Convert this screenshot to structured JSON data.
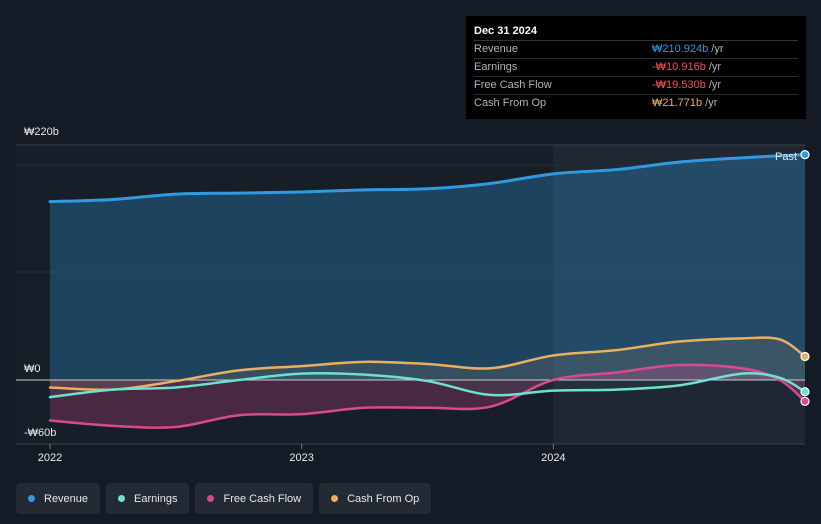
{
  "tooltip": {
    "date": "Dec 31 2024",
    "rows": [
      {
        "label": "Revenue",
        "value": "₩210.924b",
        "unit": "/yr",
        "color": "#2f9ae0"
      },
      {
        "label": "Earnings",
        "value": "-₩10.916b",
        "unit": "/yr",
        "color": "#ff4d4d"
      },
      {
        "label": "Free Cash Flow",
        "value": "-₩19.530b",
        "unit": "/yr",
        "color": "#ff4d4d"
      },
      {
        "label": "Cash From Op",
        "value": "₩21.771b",
        "unit": "/yr",
        "color": "#e8b060"
      }
    ]
  },
  "past_label": "Past",
  "legend": [
    {
      "label": "Revenue",
      "color": "#2f9ae0"
    },
    {
      "label": "Earnings",
      "color": "#6ee0d2"
    },
    {
      "label": "Free Cash Flow",
      "color": "#d64a8e"
    },
    {
      "label": "Cash From Op",
      "color": "#e8b060"
    }
  ],
  "chart_data": {
    "type": "line",
    "ylim": [
      -60,
      220
    ],
    "y_tick_labels": [
      {
        "value": 220,
        "label": "₩220b"
      },
      {
        "value": 0,
        "label": "₩0"
      },
      {
        "value": -60,
        "label": "-₩60b"
      }
    ],
    "x_range": [
      2021.9,
      2025.0
    ],
    "x_tick_labels": [
      {
        "value": 2022,
        "label": "2022"
      },
      {
        "value": 2023,
        "label": "2023"
      },
      {
        "value": 2024,
        "label": "2024"
      }
    ],
    "past_region_start": 2024.0,
    "series": [
      {
        "name": "Revenue",
        "color": "#2f9ae0",
        "x": [
          2022.0,
          2022.25,
          2022.5,
          2022.75,
          2023.0,
          2023.25,
          2023.5,
          2023.75,
          2024.0,
          2024.25,
          2024.5,
          2024.75,
          2025.0
        ],
        "y": [
          167,
          169,
          174,
          175,
          176,
          178,
          179,
          184,
          193,
          197,
          204,
          208,
          211
        ]
      },
      {
        "name": "Earnings",
        "color": "#6ee0d2",
        "x": [
          2022.0,
          2022.25,
          2022.5,
          2022.75,
          2023.0,
          2023.25,
          2023.5,
          2023.75,
          2024.0,
          2024.25,
          2024.5,
          2024.75,
          2024.9,
          2025.0
        ],
        "y": [
          -16,
          -9,
          -7,
          0,
          6,
          5,
          -1,
          -14,
          -10,
          -9,
          -5,
          6,
          2,
          -11
        ]
      },
      {
        "name": "Free Cash Flow",
        "color": "#d64a8e",
        "x": [
          2022.0,
          2022.25,
          2022.5,
          2022.75,
          2023.0,
          2023.25,
          2023.5,
          2023.75,
          2024.0,
          2024.25,
          2024.5,
          2024.75,
          2024.9,
          2025.0
        ],
        "y": [
          -38,
          -43,
          -44,
          -33,
          -32,
          -26,
          -26,
          -25,
          0,
          7,
          14,
          11,
          0,
          -20
        ]
      },
      {
        "name": "Cash From Op",
        "color": "#e8b060",
        "x": [
          2022.0,
          2022.25,
          2022.5,
          2022.75,
          2023.0,
          2023.25,
          2023.5,
          2023.75,
          2024.0,
          2024.25,
          2024.5,
          2024.75,
          2024.9,
          2025.0
        ],
        "y": [
          -7,
          -9,
          -1,
          9,
          13,
          17,
          15,
          11,
          23,
          28,
          36,
          39,
          38,
          22
        ]
      }
    ]
  }
}
